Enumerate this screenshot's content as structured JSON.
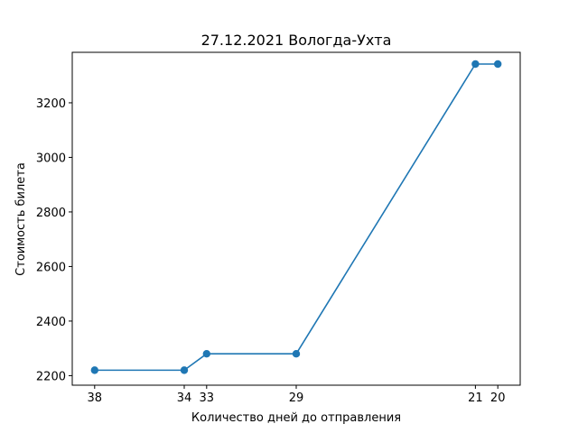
{
  "chart_data": {
    "type": "line",
    "title": "27.12.2021 Вологда-Ухта",
    "xlabel": "Количество дней до отправления",
    "ylabel": "Стоимость билета",
    "x_inverted": true,
    "xlim": [
      39,
      19
    ],
    "ylim": [
      2165,
      3385
    ],
    "x_ticks": [
      38,
      34,
      33,
      29,
      21,
      20
    ],
    "y_ticks": [
      2200,
      2400,
      2600,
      2800,
      3000,
      3200
    ],
    "series": [
      {
        "name": "Стоимость билета",
        "color": "#1f77b4",
        "x": [
          38,
          34,
          33,
          29,
          21,
          20
        ],
        "y": [
          2220,
          2220,
          2280,
          2280,
          3342,
          3342
        ]
      }
    ],
    "grid": false,
    "legend": false
  }
}
